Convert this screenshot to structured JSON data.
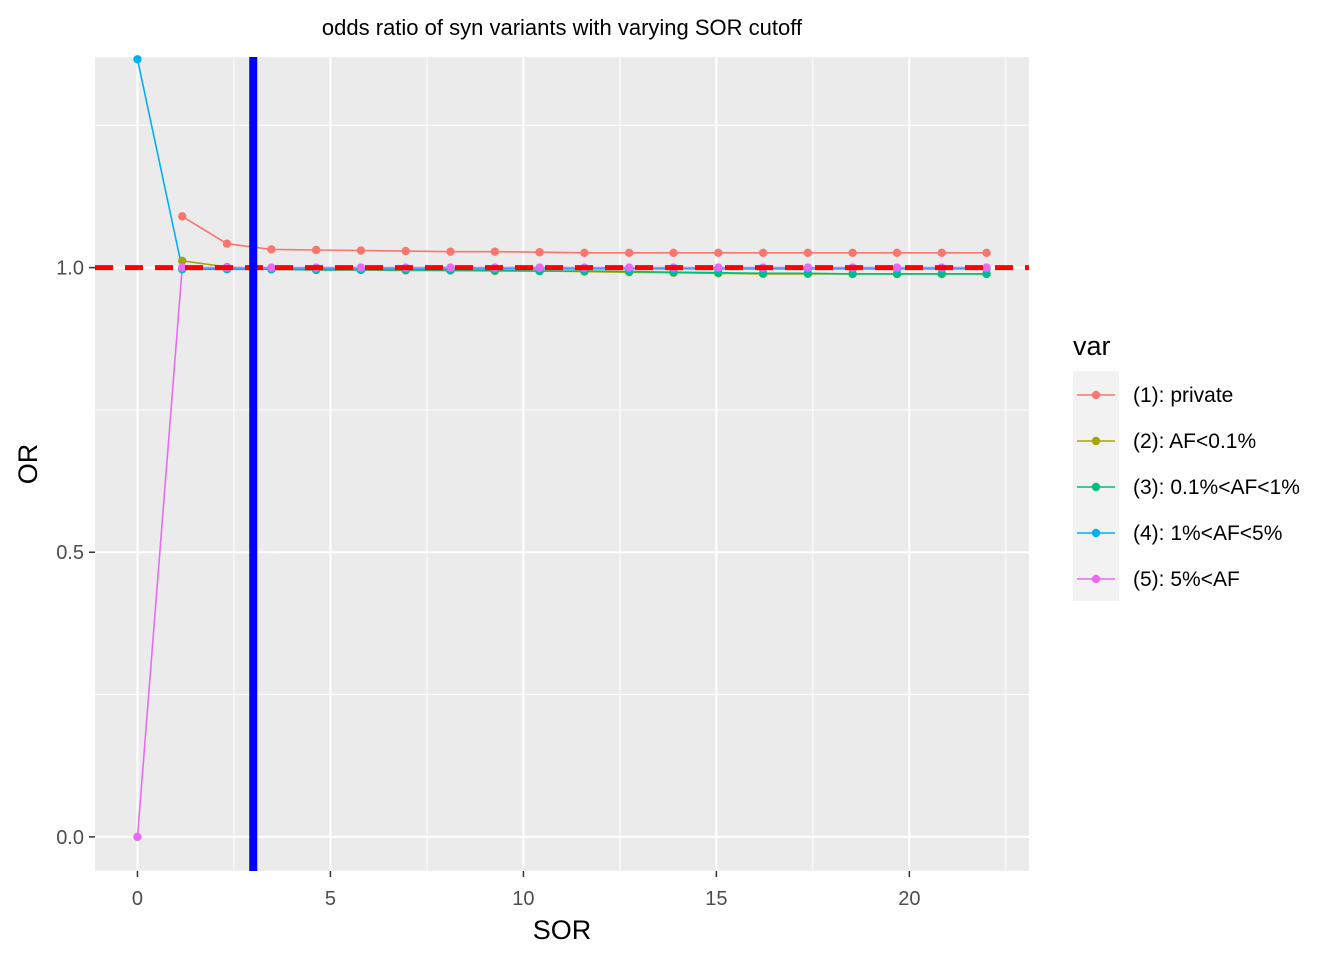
{
  "chart_data": {
    "type": "line",
    "title": "odds ratio of syn variants with varying SOR cutoff",
    "xlabel": "SOR",
    "ylabel": "OR",
    "xlim": [
      -1.1,
      23.1
    ],
    "ylim": [
      -0.06,
      1.37
    ],
    "x_ticks": [
      0,
      5,
      10,
      15,
      20
    ],
    "x_tick_labels": [
      "0",
      "5",
      "10",
      "15",
      "20"
    ],
    "y_ticks": [
      0.0,
      0.5,
      1.0
    ],
    "y_tick_labels": [
      "0.0",
      "0.5",
      "1.0"
    ],
    "grid": true,
    "legend": {
      "title": "var",
      "position": "right"
    },
    "x": [
      0,
      1.16,
      2.32,
      3.47,
      4.63,
      5.79,
      6.95,
      8.11,
      9.26,
      10.42,
      11.58,
      12.74,
      13.89,
      15.05,
      16.21,
      17.37,
      18.53,
      19.68,
      20.84,
      22.0
    ],
    "series": [
      {
        "name": "(1): private",
        "color": "#F8766D",
        "x": [
          1.16,
          2.32,
          3.47,
          4.63,
          5.79,
          6.95,
          8.11,
          9.26,
          10.42,
          11.58,
          12.74,
          13.89,
          15.05,
          16.21,
          17.37,
          18.53,
          19.68,
          20.84,
          22.0
        ],
        "values": [
          1.09,
          1.042,
          1.032,
          1.031,
          1.03,
          1.029,
          1.028,
          1.028,
          1.027,
          1.026,
          1.026,
          1.026,
          1.026,
          1.026,
          1.026,
          1.026,
          1.026,
          1.026,
          1.026
        ]
      },
      {
        "name": "(2): AF<0.1%",
        "color": "#A3A500",
        "x": [
          1.16,
          2.32,
          3.47,
          4.63,
          5.79,
          6.95,
          8.11,
          9.26,
          10.42,
          11.58,
          12.74,
          13.89,
          15.05,
          16.21,
          17.37,
          18.53,
          19.68,
          20.84,
          22.0
        ],
        "values": [
          1.012,
          1.001,
          0.997,
          0.996,
          0.996,
          0.995,
          0.995,
          0.994,
          0.994,
          0.993,
          0.992,
          0.991,
          0.99,
          0.989,
          0.989,
          0.989,
          0.989,
          0.989,
          0.989
        ]
      },
      {
        "name": "(3): 0.1%<AF<1%",
        "color": "#00BF7D",
        "x": [
          1.16,
          2.32,
          3.47,
          4.63,
          5.79,
          6.95,
          8.11,
          9.26,
          10.42,
          11.58,
          12.74,
          13.89,
          15.05,
          16.21,
          17.37,
          18.53,
          19.68,
          20.84,
          22.0
        ],
        "values": [
          0.997,
          0.997,
          0.997,
          0.996,
          0.996,
          0.996,
          0.995,
          0.995,
          0.994,
          0.994,
          0.993,
          0.992,
          0.991,
          0.99,
          0.99,
          0.989,
          0.989,
          0.989,
          0.989
        ]
      },
      {
        "name": "(4): 1%<AF<5%",
        "color": "#00B0F6",
        "x": [
          0,
          1.16,
          2.32,
          3.47,
          4.63,
          5.79,
          6.95,
          8.11,
          9.26,
          10.42,
          11.58,
          12.74,
          13.89,
          15.05,
          16.21,
          17.37,
          18.53,
          19.68,
          20.84,
          22.0
        ],
        "values": [
          1.366,
          0.998,
          0.998,
          0.998,
          0.998,
          0.998,
          0.998,
          0.998,
          0.998,
          0.998,
          0.998,
          0.998,
          0.998,
          0.998,
          0.998,
          0.998,
          0.998,
          0.998,
          0.998,
          0.998
        ]
      },
      {
        "name": "(5): 5%<AF",
        "color": "#E76BF3",
        "x": [
          0,
          1.16,
          2.32,
          3.47,
          4.63,
          5.79,
          6.95,
          8.11,
          9.26,
          10.42,
          11.58,
          12.74,
          13.89,
          15.05,
          16.21,
          17.37,
          18.53,
          19.68,
          20.84,
          22.0
        ],
        "values": [
          0.0,
          1.0,
          1.0,
          1.0,
          1.0,
          1.0,
          1.0,
          1.0,
          1.0,
          1.0,
          1.0,
          1.0,
          1.0,
          1.0,
          1.0,
          1.0,
          1.0,
          1.0,
          1.0,
          1.0
        ]
      }
    ],
    "reference_lines": [
      {
        "orientation": "horizontal",
        "value": 1.0,
        "color": "#FF0000",
        "style": "dashed"
      },
      {
        "orientation": "vertical",
        "value": 3,
        "color": "#0000FF",
        "style": "solid"
      }
    ]
  }
}
